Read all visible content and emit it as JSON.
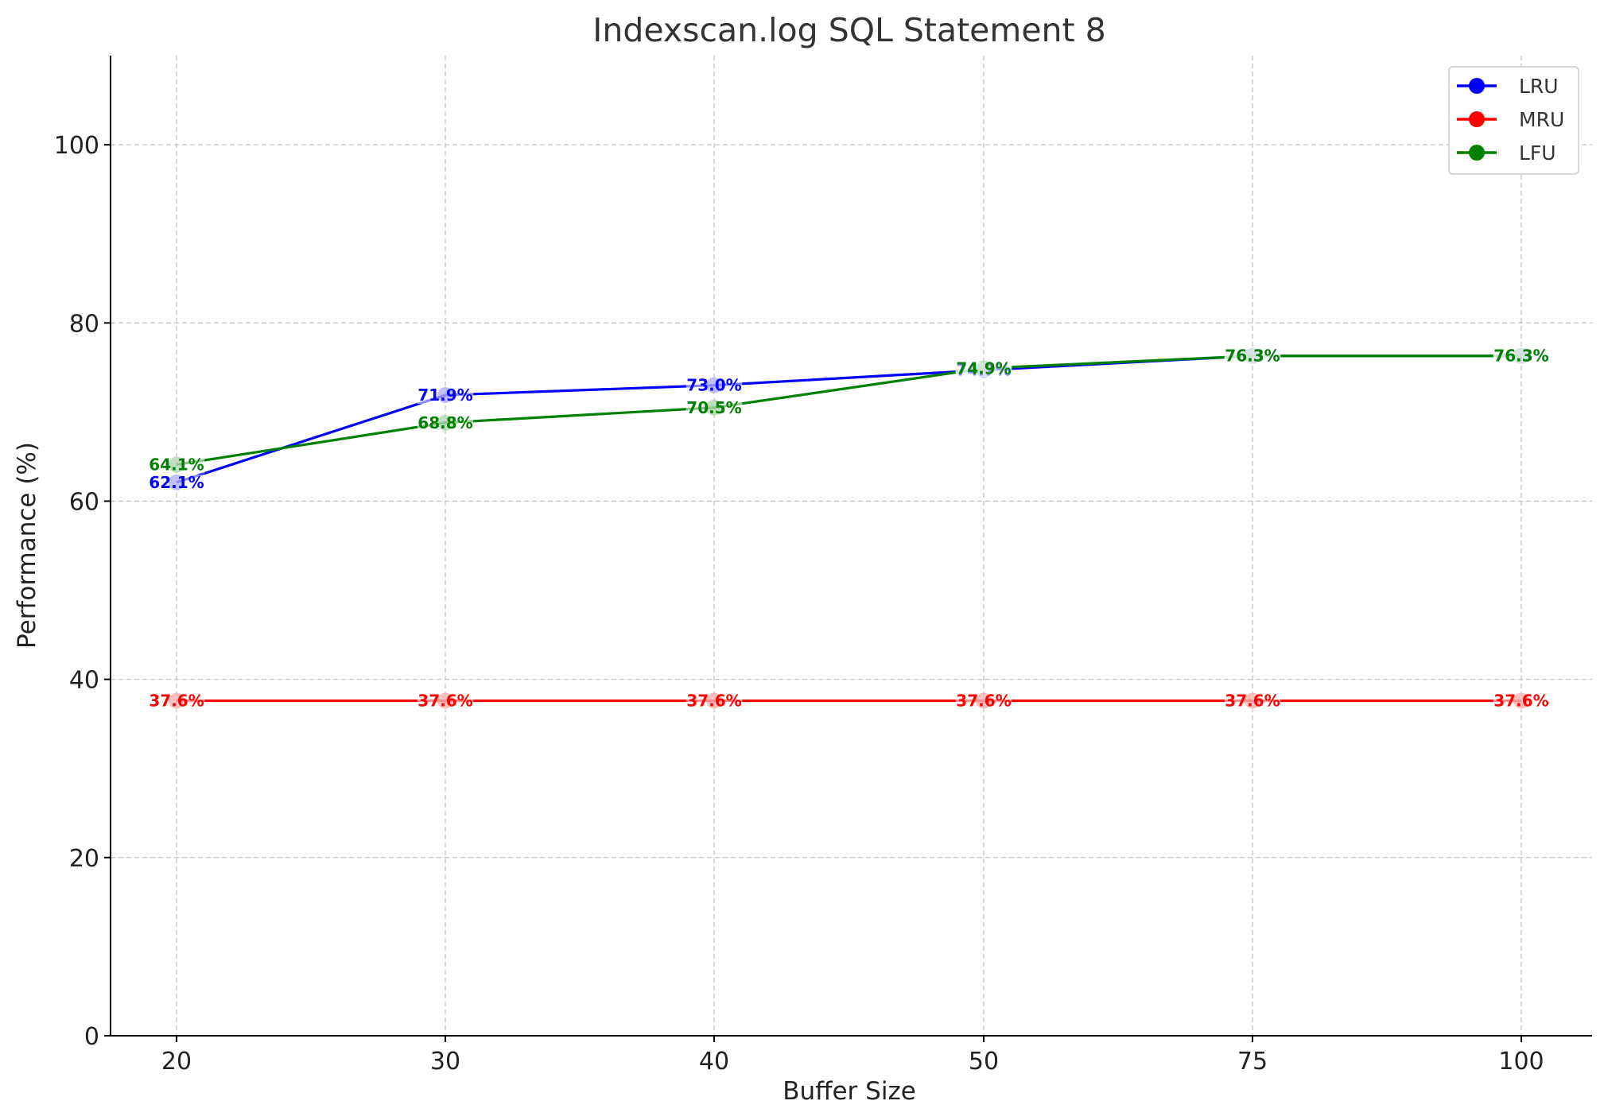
{
  "chart_data": {
    "type": "line",
    "title": "Indexscan.log SQL Statement 8",
    "xlabel": "Buffer Size",
    "ylabel": "Performance (%)",
    "categories": [
      "20",
      "30",
      "40",
      "50",
      "75",
      "100"
    ],
    "ylim": [
      0,
      110
    ],
    "yticks": [
      0,
      20,
      40,
      60,
      80,
      100
    ],
    "grid": true,
    "legend_position": "top-right",
    "series": [
      {
        "name": "LRU",
        "color": "#0000ff",
        "values": [
          62.1,
          71.9,
          73.0,
          74.7,
          76.3,
          76.3
        ],
        "labels": [
          "62.1%",
          "71.9%",
          "73.0%",
          "74.7%",
          "76.3%",
          "76.3%"
        ]
      },
      {
        "name": "MRU",
        "color": "#ff0000",
        "values": [
          37.6,
          37.6,
          37.6,
          37.6,
          37.6,
          37.6
        ],
        "labels": [
          "37.6%",
          "37.6%",
          "37.6%",
          "37.6%",
          "37.6%",
          "37.6%"
        ]
      },
      {
        "name": "LFU",
        "color": "#008000",
        "values": [
          64.1,
          68.8,
          70.5,
          74.9,
          76.3,
          76.3
        ],
        "labels": [
          "64.1%",
          "68.8%",
          "70.5%",
          "74.9%",
          "76.3%",
          "76.3%"
        ]
      }
    ]
  }
}
